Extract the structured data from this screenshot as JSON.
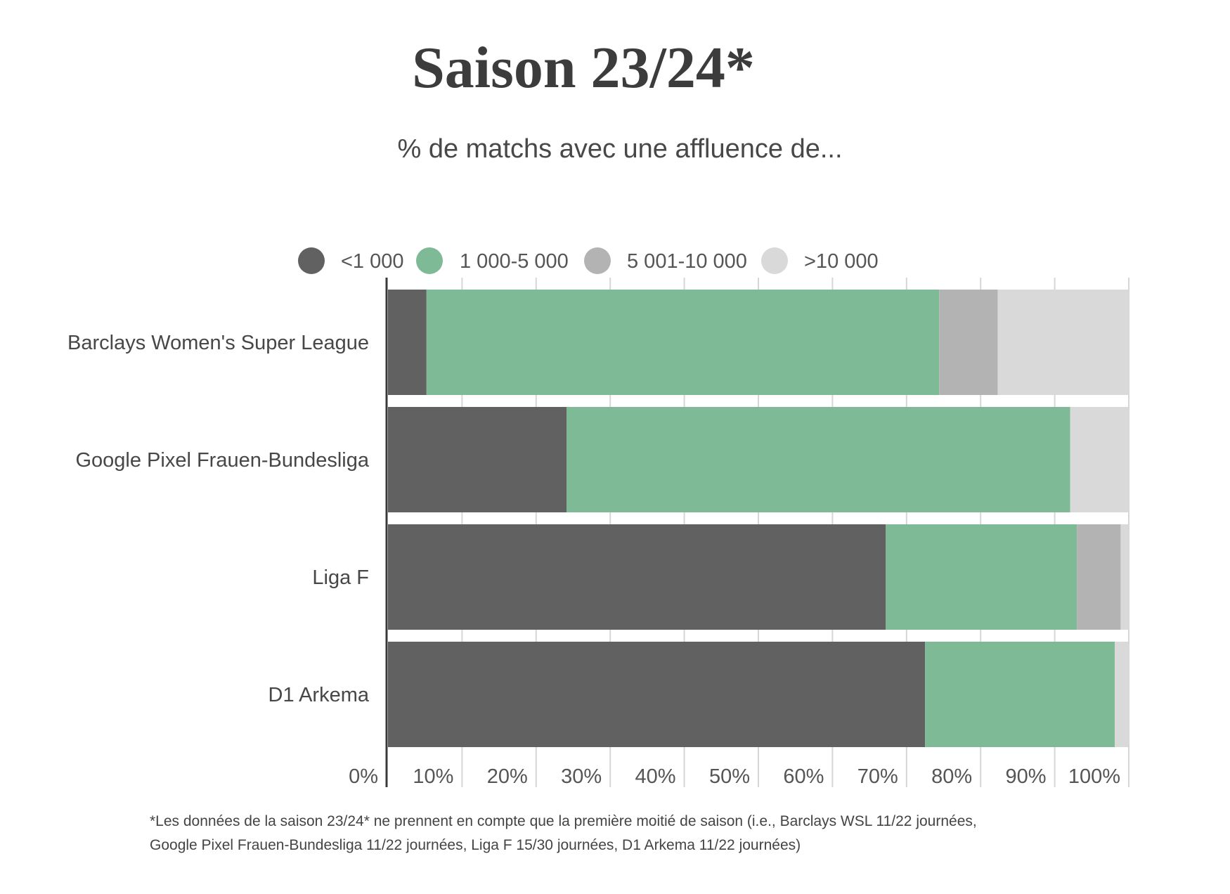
{
  "chart_data": {
    "type": "bar",
    "orientation": "horizontal",
    "stacked": true,
    "title": "Saison 23/24*",
    "subtitle": "% de matchs avec une affluence de...",
    "categories": [
      "Barclays Women's Super League",
      "Google Pixel Frauen-Bundesliga",
      "Liga F",
      "D1 Arkema"
    ],
    "series": [
      {
        "name": "<1 000",
        "color": "#616161",
        "values": [
          5.2,
          24.1,
          67.2,
          72.5
        ]
      },
      {
        "name": "1 000-5 000",
        "color": "#7fba97",
        "values": [
          69.2,
          68.0,
          25.8,
          25.6
        ]
      },
      {
        "name": "5 001-10 000",
        "color": "#b3b3b3",
        "values": [
          7.9,
          0,
          5.9,
          0
        ]
      },
      {
        "name": ">10 000",
        "color": "#d9d9d9",
        "values": [
          17.7,
          7.9,
          1.1,
          1.9
        ]
      }
    ],
    "xlim": [
      0,
      100
    ],
    "x_tick_values": [
      0,
      10,
      20,
      30,
      40,
      50,
      60,
      70,
      80,
      90,
      100
    ],
    "x_tick_labels": [
      "0%",
      "10%",
      "20%",
      "30%",
      "40%",
      "50%",
      "60%",
      "70%",
      "80%",
      "90%",
      "100%"
    ],
    "grid": true,
    "legend_position": "top",
    "note": [
      "*Les données de la saison 23/24* ne prennent en compte que la première moitié de saison (i.e., Barclays WSL 11/22 journées,",
      "Google Pixel Frauen-Bundesliga 11/22 journées, Liga F 15/30 journées, D1 Arkema 11/22 journées)"
    ]
  }
}
